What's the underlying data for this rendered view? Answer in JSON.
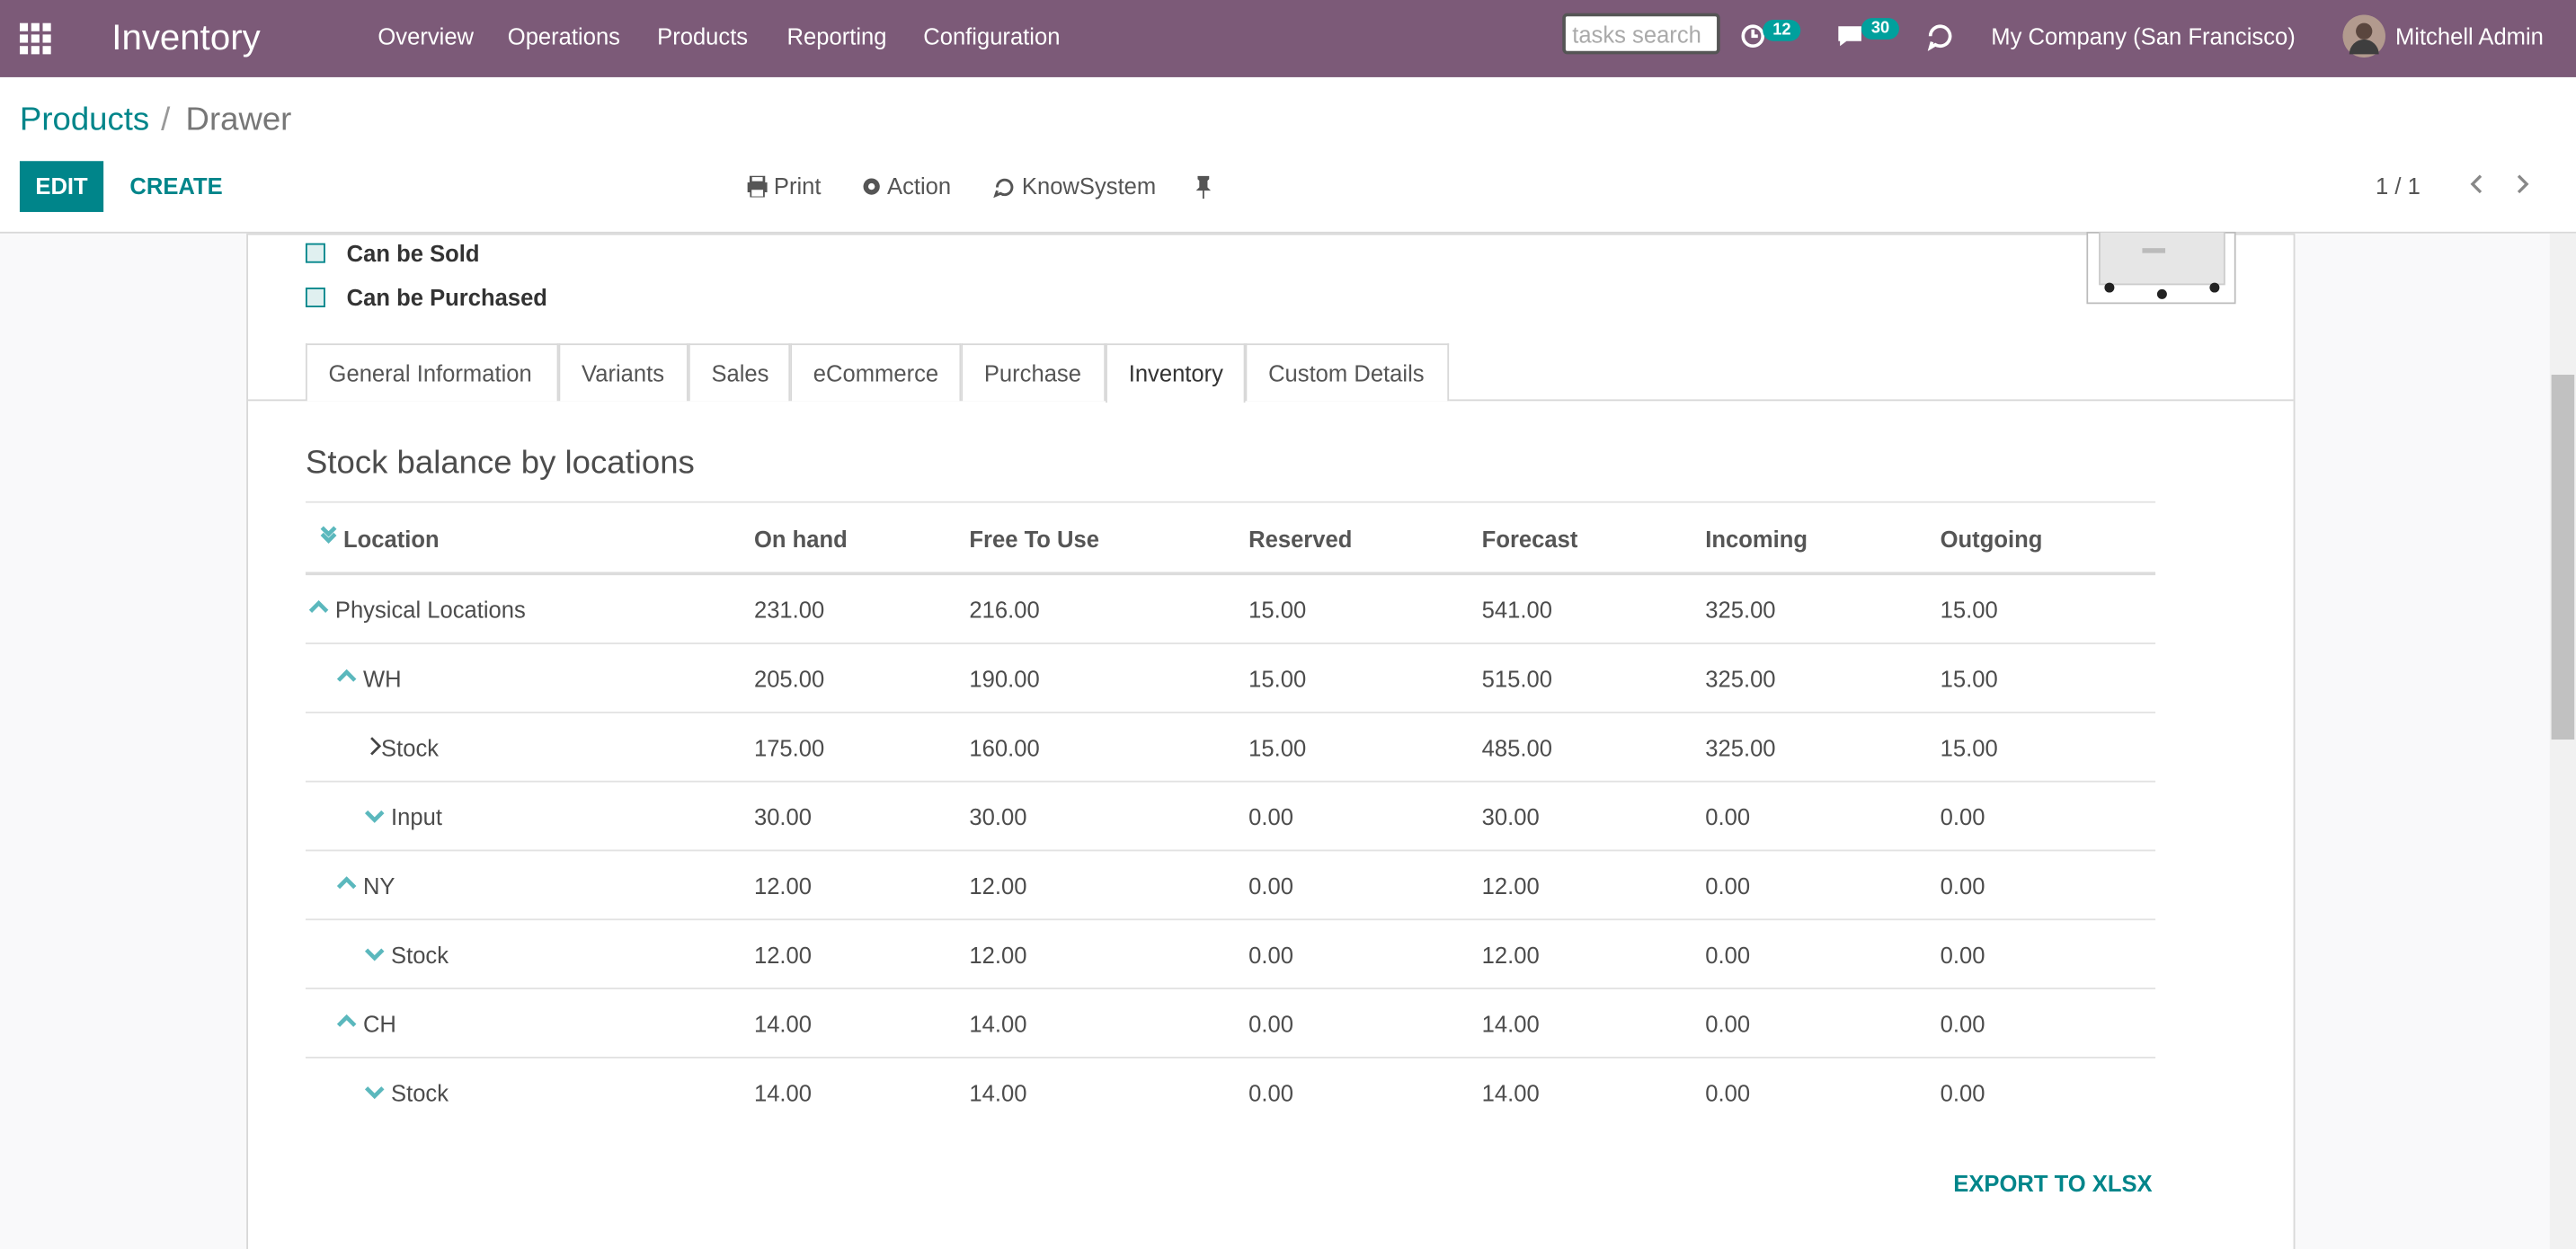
{
  "navbar": {
    "app": "Inventory",
    "menu": [
      "Overview",
      "Operations",
      "Products",
      "Reporting",
      "Configuration"
    ],
    "search_placeholder": "tasks search",
    "activity_count": "12",
    "message_count": "30",
    "company": "My Company (San Francisco)",
    "user": "Mitchell Admin"
  },
  "breadcrumb": [
    "Products",
    "Drawer"
  ],
  "buttons": {
    "edit": "EDIT",
    "create": "CREATE",
    "print": "Print",
    "action": "Action",
    "knowsystem": "KnowSystem",
    "pager": "1 / 1"
  },
  "checkboxes": [
    "Can be Sold",
    "Can be Purchased"
  ],
  "tabs": [
    "General Information",
    "Variants",
    "Sales",
    "eCommerce",
    "Purchase",
    "Inventory",
    "Custom Details"
  ],
  "active_tab": 5,
  "section_title": "Stock balance by locations",
  "table": {
    "headers": [
      "Location",
      "On hand",
      "Free To Use",
      "Reserved",
      "Forecast",
      "Incoming",
      "Outgoing"
    ],
    "rows": [
      {
        "level": 0,
        "icon": "up",
        "cells": [
          "Physical Locations",
          "231.00",
          "216.00",
          "15.00",
          "541.00",
          "325.00",
          "15.00"
        ]
      },
      {
        "level": 1,
        "icon": "up",
        "cells": [
          "WH",
          "205.00",
          "190.00",
          "15.00",
          "515.00",
          "325.00",
          "15.00"
        ]
      },
      {
        "level": 2,
        "icon": "right",
        "cells": [
          "Stock",
          "175.00",
          "160.00",
          "15.00",
          "485.00",
          "325.00",
          "15.00"
        ]
      },
      {
        "level": 2,
        "icon": "down",
        "cells": [
          "Input",
          "30.00",
          "30.00",
          "0.00",
          "30.00",
          "0.00",
          "0.00"
        ]
      },
      {
        "level": 1,
        "icon": "up",
        "cells": [
          "NY",
          "12.00",
          "12.00",
          "0.00",
          "12.00",
          "0.00",
          "0.00"
        ]
      },
      {
        "level": 2,
        "icon": "down",
        "cells": [
          "Stock",
          "12.00",
          "12.00",
          "0.00",
          "12.00",
          "0.00",
          "0.00"
        ]
      },
      {
        "level": 1,
        "icon": "up",
        "cells": [
          "CH",
          "14.00",
          "14.00",
          "0.00",
          "14.00",
          "0.00",
          "0.00"
        ]
      },
      {
        "level": 2,
        "icon": "down",
        "cells": [
          "Stock",
          "14.00",
          "14.00",
          "0.00",
          "14.00",
          "0.00",
          "0.00"
        ]
      }
    ]
  },
  "export": "EXPORT TO XLSX"
}
